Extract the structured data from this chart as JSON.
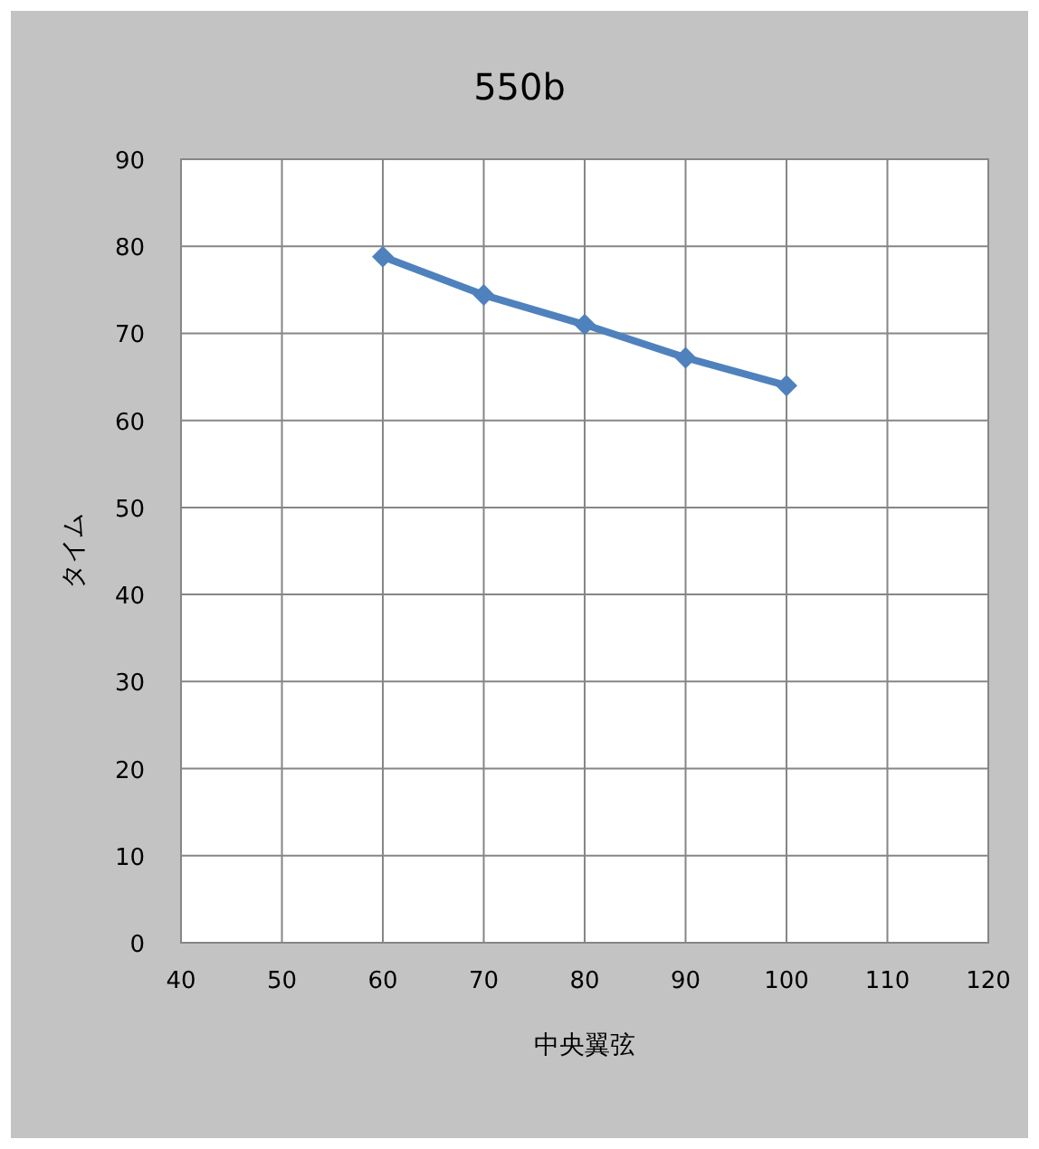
{
  "chart_data": {
    "type": "line",
    "title": "550b",
    "xlabel": "中央翼弦",
    "ylabel": "タイム",
    "x": [
      60,
      70,
      80,
      90,
      100
    ],
    "series": [
      {
        "color": "#4f81bd",
        "values": [
          78.8,
          74.4,
          71.0,
          67.2,
          64.0
        ]
      }
    ],
    "xlim": [
      40,
      120
    ],
    "xticks": [
      40,
      50,
      60,
      70,
      80,
      90,
      100,
      110,
      120
    ],
    "ylim": [
      0,
      90
    ],
    "yticks": [
      0,
      10,
      20,
      30,
      40,
      50,
      60,
      70,
      80,
      90
    ],
    "grid": true,
    "marker": "diamond",
    "line_style": "solid"
  }
}
